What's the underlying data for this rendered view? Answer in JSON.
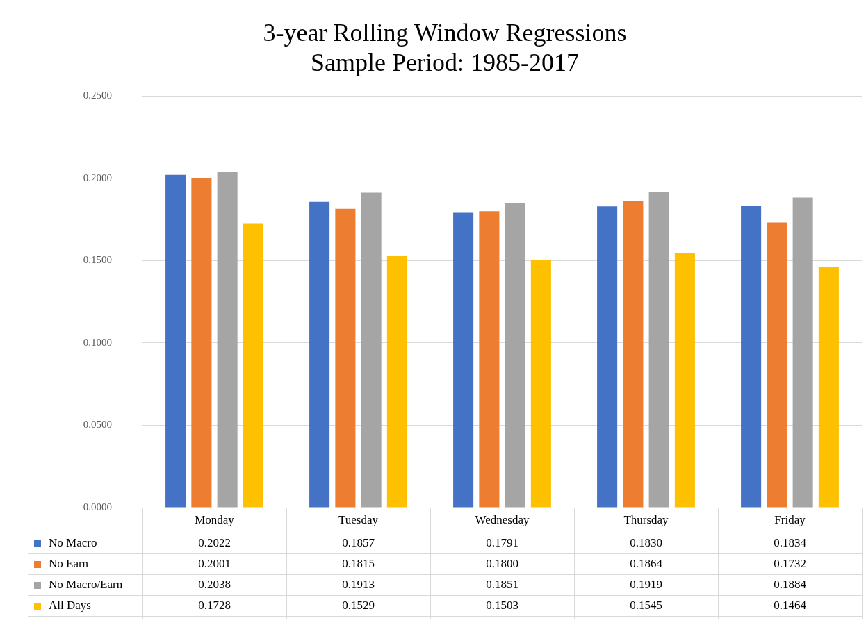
{
  "chart_data": {
    "type": "bar",
    "title": "3-year Rolling Window Regressions",
    "subtitle": "Sample Period: 1985-2017",
    "categories": [
      "Monday",
      "Tuesday",
      "Wednesday",
      "Thursday",
      "Friday"
    ],
    "series": [
      {
        "name": "No Macro",
        "color": "#4472c4",
        "values": [
          0.2022,
          0.1857,
          0.1791,
          0.183,
          0.1834
        ],
        "value_labels": [
          "0.2022",
          "0.1857",
          "0.1791",
          "0.1830",
          "0.1834"
        ]
      },
      {
        "name": "No Earn",
        "color": "#ed7d31",
        "values": [
          0.2001,
          0.1815,
          0.18,
          0.1864,
          0.1732
        ],
        "value_labels": [
          "0.2001",
          "0.1815",
          "0.1800",
          "0.1864",
          "0.1732"
        ]
      },
      {
        "name": "No Macro/Earn",
        "color": "#a5a5a5",
        "values": [
          0.2038,
          0.1913,
          0.1851,
          0.1919,
          0.1884
        ],
        "value_labels": [
          "0.2038",
          "0.1913",
          "0.1851",
          "0.1919",
          "0.1884"
        ]
      },
      {
        "name": "All Days",
        "color": "#ffc000",
        "values": [
          0.1728,
          0.1529,
          0.1503,
          0.1545,
          0.1464
        ],
        "value_labels": [
          "0.1728",
          "0.1529",
          "0.1503",
          "0.1545",
          "0.1464"
        ]
      }
    ],
    "ylim": [
      0,
      0.25
    ],
    "yticks": [
      {
        "value": 0,
        "label": "0.0000"
      },
      {
        "value": 0.05,
        "label": "0.0500"
      },
      {
        "value": 0.1,
        "label": "0.1000"
      },
      {
        "value": 0.15,
        "label": "0.1500"
      },
      {
        "value": 0.2,
        "label": "0.2000"
      },
      {
        "value": 0.25,
        "label": "0.2500"
      }
    ],
    "grid": "y",
    "legend": "bottom"
  }
}
